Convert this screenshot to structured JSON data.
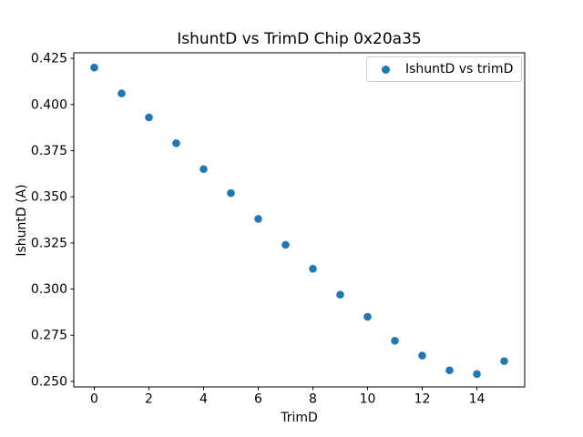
{
  "chart_data": {
    "type": "scatter",
    "title": "IshuntD vs TrimD Chip 0x20a35",
    "xlabel": "TrimD",
    "ylabel": "IshuntD (A)",
    "legend": [
      "IshuntD vs trimD"
    ],
    "legend_position": "upper right",
    "grid": false,
    "marker_color": "#1f77b4",
    "legend_edge_color": "#cccccc",
    "axis_color": "#000000",
    "x": [
      0,
      1,
      2,
      3,
      4,
      5,
      6,
      7,
      8,
      9,
      10,
      11,
      12,
      13,
      14,
      15
    ],
    "y": [
      0.42,
      0.406,
      0.393,
      0.379,
      0.365,
      0.352,
      0.338,
      0.324,
      0.311,
      0.297,
      0.285,
      0.272,
      0.264,
      0.256,
      0.254,
      0.261
    ],
    "xlim": [
      -0.75,
      15.75
    ],
    "ylim": [
      0.247,
      0.428
    ],
    "x_ticks": [
      0,
      2,
      4,
      6,
      8,
      10,
      12,
      14
    ],
    "y_ticks": [
      0.25,
      0.275,
      0.3,
      0.325,
      0.35,
      0.375,
      0.4,
      0.425
    ]
  }
}
